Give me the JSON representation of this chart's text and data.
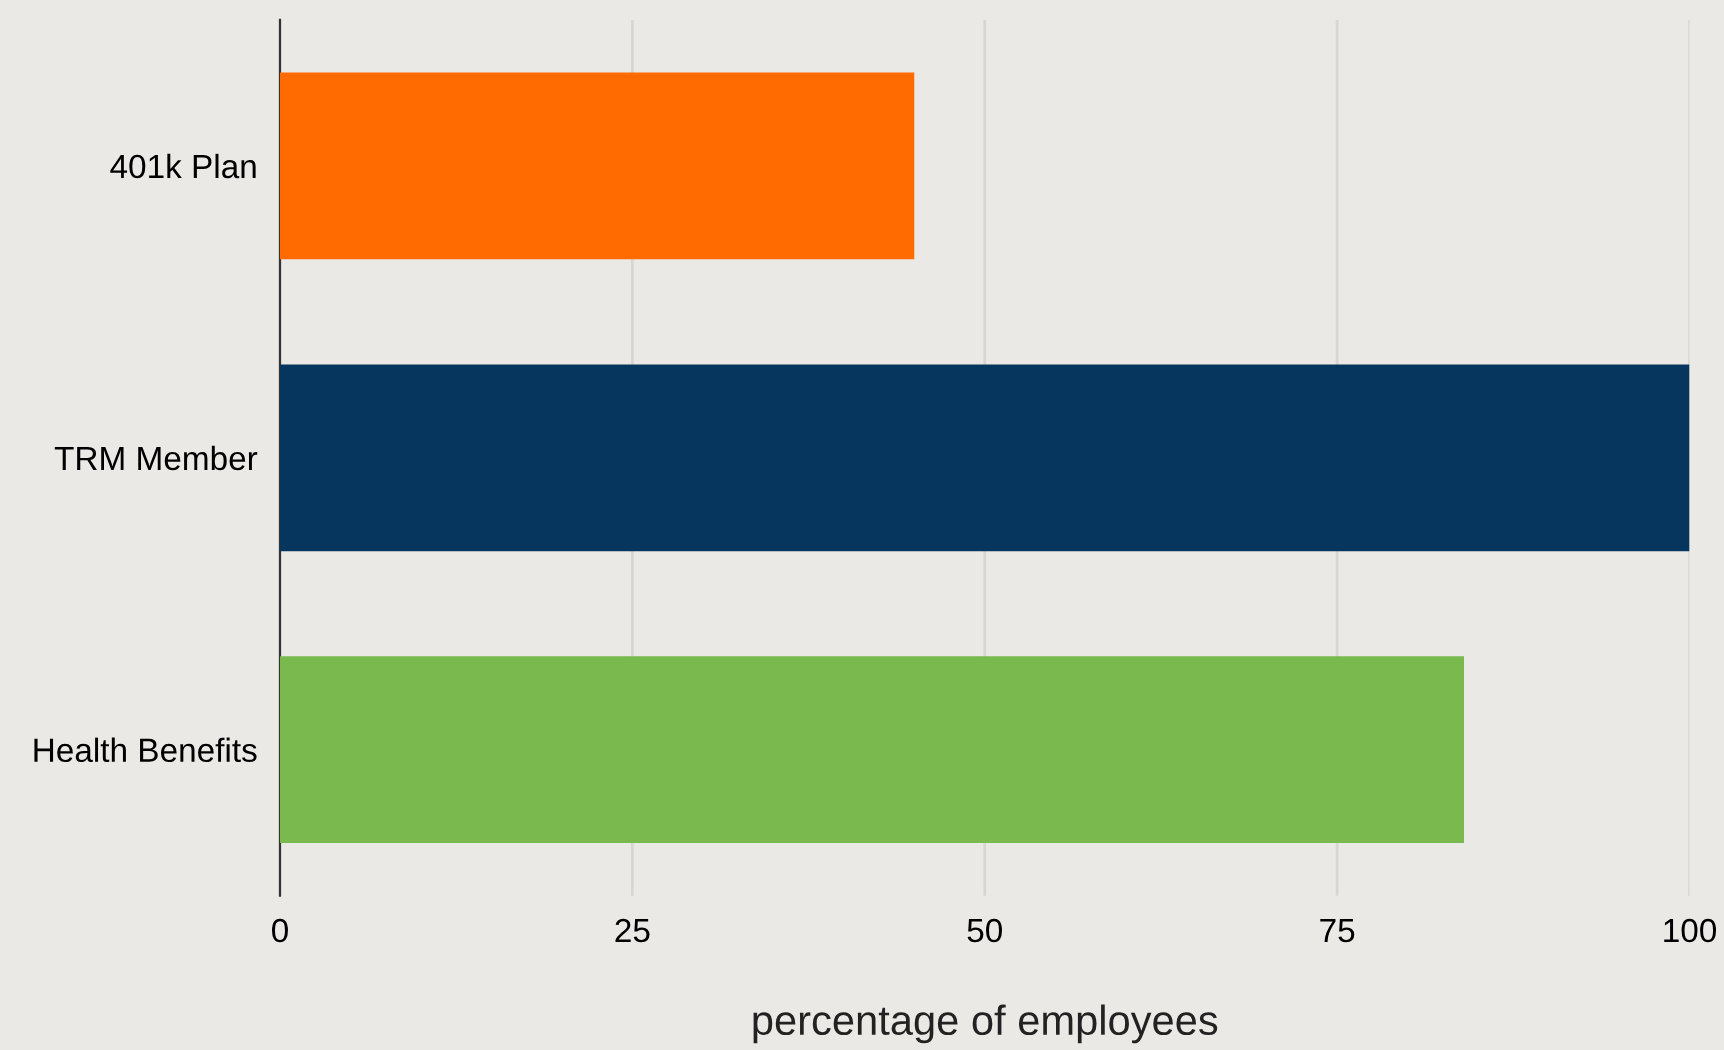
{
  "chart_data": {
    "type": "bar",
    "orientation": "horizontal",
    "xlabel": "percentage of employees",
    "categories": [
      "401k Plan",
      "TRM Member",
      "Health Benefits"
    ],
    "values": [
      45,
      100,
      84
    ],
    "colors": [
      "#ff6b00",
      "#06365d",
      "#79b94d"
    ],
    "xlim": [
      0,
      100
    ],
    "xticks": [
      0,
      25,
      50,
      75,
      100
    ],
    "grid": "x"
  }
}
